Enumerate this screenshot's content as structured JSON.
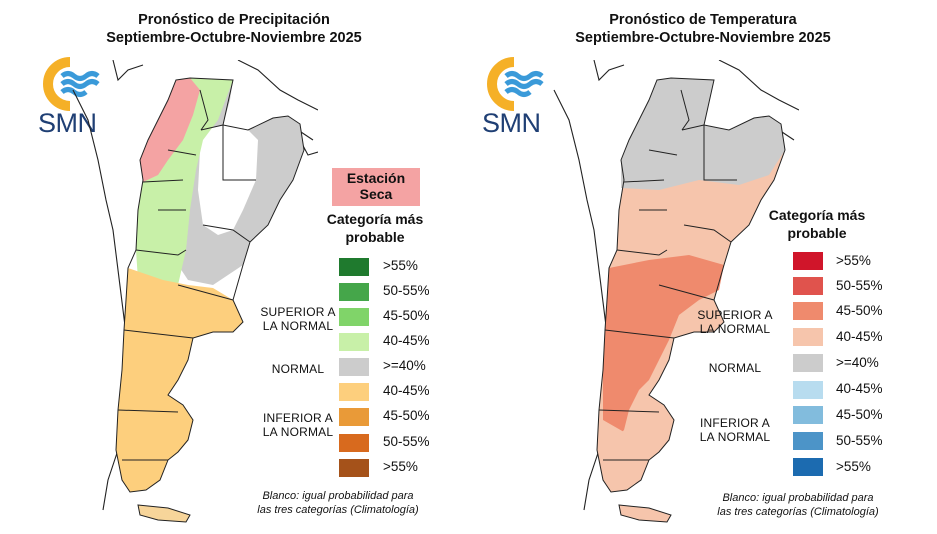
{
  "precip": {
    "title_line1": "Pronóstico de Precipitación",
    "title_line2": "Septiembre-Octubre-Noviembre 2025",
    "logo_text": "SMN",
    "badge_line1": "Estación",
    "badge_line2": "Seca",
    "legend_title_line1": "Categoría más",
    "legend_title_line2": "probable",
    "group_superior_1": "SUPERIOR A",
    "group_superior_2": "LA NORMAL",
    "group_normal": "NORMAL",
    "group_inferior_1": "INFERIOR A",
    "group_inferior_2": "LA NORMAL",
    "legend": [
      {
        "label": ">55%",
        "color": "#1f7a2e"
      },
      {
        "label": "50-55%",
        "color": "#45a64a"
      },
      {
        "label": "45-50%",
        "color": "#80d469"
      },
      {
        "label": "40-45%",
        "color": "#c8f0a8"
      },
      {
        "label": ">=40%",
        "color": "#cccccc"
      },
      {
        "label": "40-45%",
        "color": "#fdcf7d"
      },
      {
        "label": "45-50%",
        "color": "#e99a38"
      },
      {
        "label": "50-55%",
        "color": "#d86a1e"
      },
      {
        "label": ">55%",
        "color": "#a5521a"
      }
    ],
    "note_line1": "Blanco: igual probabilidad para",
    "note_line2": "las tres categorías (Climatología)"
  },
  "temp": {
    "title_line1": "Pronóstico de Temperatura",
    "title_line2": "Septiembre-Octubre-Noviembre 2025",
    "logo_text": "SMN",
    "legend_title_line1": "Categoría más",
    "legend_title_line2": "probable",
    "group_superior_1": "SUPERIOR A",
    "group_superior_2": "LA NORMAL",
    "group_normal": "NORMAL",
    "group_inferior_1": "INFERIOR A",
    "group_inferior_2": "LA NORMAL",
    "legend": [
      {
        "label": ">55%",
        "color": "#d0152a"
      },
      {
        "label": "50-55%",
        "color": "#e0534d"
      },
      {
        "label": "45-50%",
        "color": "#ef8a6d"
      },
      {
        "label": "40-45%",
        "color": "#f6c5ac"
      },
      {
        "label": ">=40%",
        "color": "#cccccc"
      },
      {
        "label": "40-45%",
        "color": "#b8dcef"
      },
      {
        "label": "45-50%",
        "color": "#82bcdd"
      },
      {
        "label": "50-55%",
        "color": "#4c94c8"
      },
      {
        "label": ">55%",
        "color": "#1c6bb0"
      }
    ],
    "note_line1": "Blanco: igual probabilidad para",
    "note_line2": "las tres categorías (Climatología)"
  },
  "colors": {
    "logo_ring": "#f5b027",
    "logo_waves": "#3a9ad9",
    "logo_text": "#1f3f74",
    "border": "#222222"
  }
}
